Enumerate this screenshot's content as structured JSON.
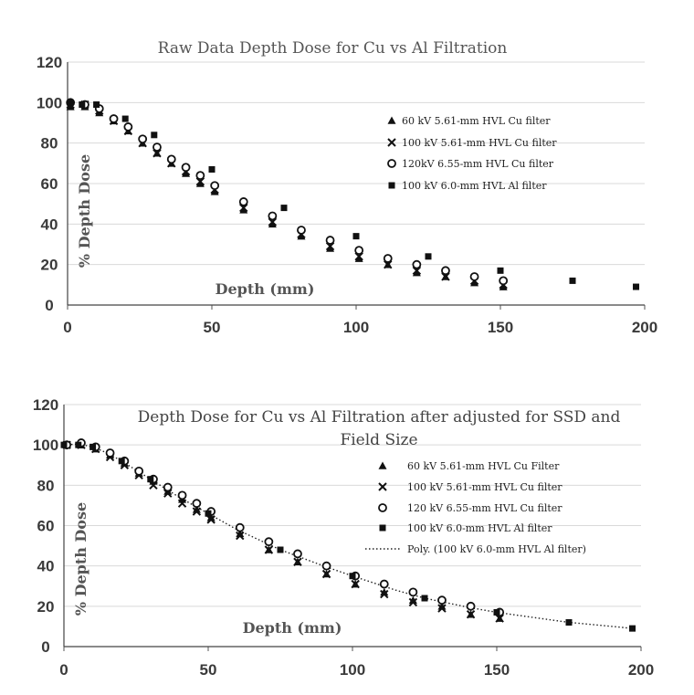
{
  "chart_data": [
    {
      "type": "scatter",
      "title": "Raw Data Depth Dose for Cu vs Al Filtration",
      "xlabel": "Depth (mm)",
      "ylabel": "% Depth Dose",
      "xlim": [
        0,
        200
      ],
      "ylim": [
        0,
        120
      ],
      "xticks": [
        "0",
        "50",
        "100",
        "150",
        "200"
      ],
      "yticks": [
        "0",
        "20",
        "40",
        "60",
        "80",
        "100",
        "120"
      ],
      "grid": true,
      "legend_position": "right",
      "series": [
        {
          "name": "60 kV 5.61-mm HVL Cu filter",
          "marker": "triangle",
          "x": [
            1,
            6,
            11,
            16,
            21,
            26,
            31,
            36,
            41,
            46,
            51,
            61,
            71,
            81,
            91,
            101,
            111,
            121,
            131,
            141,
            151
          ],
          "y": [
            98,
            98,
            95,
            91,
            86,
            80,
            75,
            70,
            65,
            60,
            56,
            47,
            40,
            34,
            28,
            23,
            20,
            16,
            14,
            11,
            9
          ]
        },
        {
          "name": "100 kV 5.61-mm HVL Cu filter",
          "marker": "x",
          "x": [
            1,
            6,
            11,
            16,
            21,
            26,
            31,
            36,
            41,
            46,
            51,
            61,
            71,
            81,
            91,
            101,
            111,
            121,
            131,
            141,
            151
          ],
          "y": [
            99,
            99,
            96,
            91,
            86,
            80,
            75,
            70,
            66,
            61,
            57,
            48,
            41,
            35,
            29,
            24,
            20,
            17,
            14,
            12,
            10
          ]
        },
        {
          "name": "120kV 6.55-mm HVL Cu filter",
          "marker": "circle",
          "x": [
            1,
            6,
            11,
            16,
            21,
            26,
            31,
            36,
            41,
            46,
            51,
            61,
            71,
            81,
            91,
            101,
            111,
            121,
            131,
            141,
            151
          ],
          "y": [
            100,
            99,
            97,
            92,
            88,
            82,
            78,
            72,
            68,
            64,
            59,
            51,
            44,
            37,
            32,
            27,
            23,
            20,
            17,
            14,
            12
          ]
        },
        {
          "name": "100 kV 6.0-mm HVL Al filter",
          "marker": "square",
          "x": [
            1,
            5,
            10,
            20,
            30,
            50,
            75,
            100,
            125,
            150,
            175,
            197
          ],
          "y": [
            100,
            99,
            99,
            92,
            84,
            67,
            48,
            34,
            24,
            17,
            12,
            9
          ]
        }
      ]
    },
    {
      "type": "scatter",
      "title": "Depth Dose for Cu vs Al Filtration after adjusted for SSD and",
      "title_line2": "Field Size",
      "xlabel": "Depth (mm)",
      "ylabel": "% Depth Dose",
      "xlim": [
        0,
        200
      ],
      "ylim": [
        0,
        120
      ],
      "xticks": [
        "0",
        "50",
        "100",
        "150",
        "200"
      ],
      "yticks": [
        "0",
        "20",
        "40",
        "60",
        "80",
        "100",
        "120"
      ],
      "grid": true,
      "legend_position": "right",
      "series": [
        {
          "name": "60 kV 5.61-mm HVL Cu Filter",
          "marker": "triangle",
          "x": [
            1,
            6,
            11,
            16,
            21,
            26,
            31,
            36,
            41,
            46,
            51,
            61,
            71,
            81,
            91,
            101,
            111,
            121,
            131,
            141,
            151
          ],
          "y": [
            100,
            100,
            98,
            95,
            91,
            86,
            82,
            77,
            73,
            68,
            64,
            56,
            48,
            42,
            36,
            31,
            27,
            23,
            20,
            16,
            14
          ]
        },
        {
          "name": "100 kV 5.61-mm HVL Cu filter",
          "marker": "x",
          "x": [
            1,
            6,
            11,
            16,
            21,
            26,
            31,
            36,
            41,
            46,
            51,
            61,
            71,
            81,
            91,
            101,
            111,
            121,
            131,
            141,
            151
          ],
          "y": [
            100,
            100,
            98,
            94,
            90,
            85,
            80,
            76,
            71,
            67,
            63,
            55,
            48,
            42,
            36,
            31,
            26,
            22,
            19,
            16,
            14
          ]
        },
        {
          "name": "120 kV 6.55-mm HVL Cu filter",
          "marker": "circle",
          "x": [
            1,
            6,
            11,
            16,
            21,
            26,
            31,
            36,
            41,
            46,
            51,
            61,
            71,
            81,
            91,
            101,
            111,
            121,
            131,
            141,
            151
          ],
          "y": [
            100,
            101,
            99,
            96,
            92,
            87,
            83,
            79,
            75,
            71,
            67,
            59,
            52,
            46,
            40,
            35,
            31,
            27,
            23,
            20,
            17
          ]
        },
        {
          "name": "100 kV 6.0-mm HVL Al filter",
          "marker": "square",
          "x": [
            0,
            5,
            10,
            20,
            30,
            50,
            75,
            100,
            125,
            150,
            175,
            197
          ],
          "y": [
            100,
            100,
            99,
            92,
            83,
            66,
            48,
            35,
            24,
            17,
            12,
            9
          ]
        },
        {
          "name": "Poly. (100 kV 6.0-mm HVL Al filter)",
          "style": "dotted-trendline",
          "x": [
            0,
            5,
            10,
            15,
            20,
            30,
            40,
            50,
            60,
            75,
            90,
            100,
            115,
            125,
            140,
            150,
            165,
            175,
            190,
            197
          ],
          "y": [
            100,
            100.5,
            99,
            96,
            92,
            83,
            74,
            66,
            58,
            48,
            40,
            35,
            28,
            24,
            19.5,
            17,
            14,
            12,
            10,
            9
          ]
        }
      ]
    }
  ]
}
